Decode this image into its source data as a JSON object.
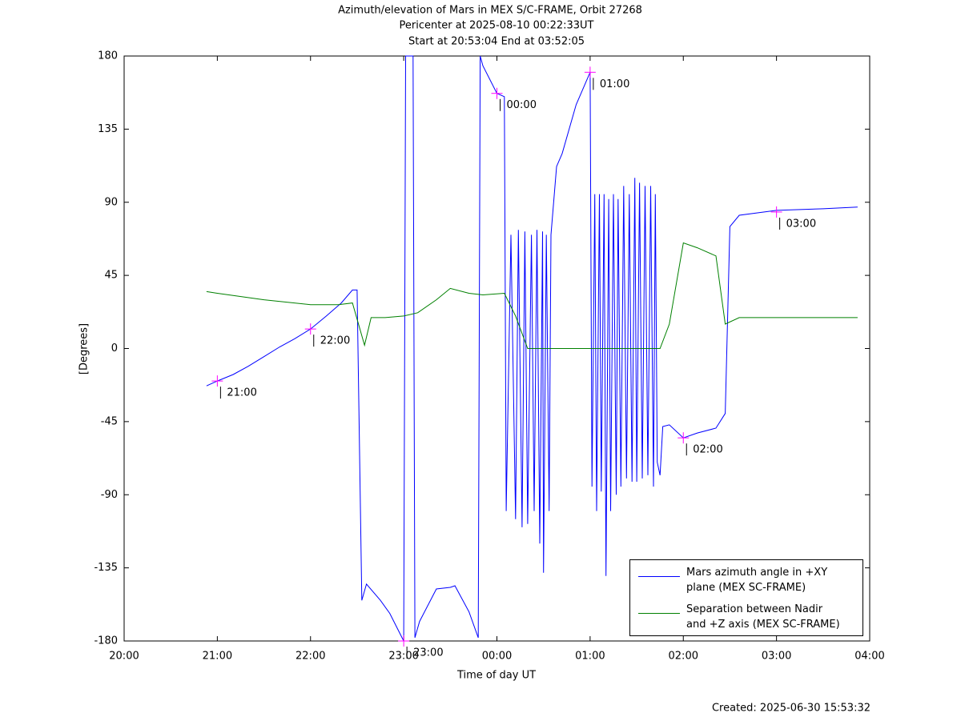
{
  "chart_data": {
    "type": "line",
    "title": "Azimuth/elevation of Mars in MEX S/C-FRAME,  Orbit 27268",
    "subtitle": "Pericenter at 2025-08-10 00:22:33UT",
    "subtitle2": "Start at 20:53:04 End at 03:52:05",
    "xlabel": "Time of day UT",
    "ylabel": "[Degrees]",
    "footer": "Created: 2025-06-30 15:53:32",
    "xlim": [
      20,
      28
    ],
    "ylim": [
      -180,
      180
    ],
    "xticks": [
      {
        "value": 20,
        "label": "20:00"
      },
      {
        "value": 21,
        "label": "21:00"
      },
      {
        "value": 22,
        "label": "22:00"
      },
      {
        "value": 23,
        "label": "23:00"
      },
      {
        "value": 24,
        "label": "00:00"
      },
      {
        "value": 25,
        "label": "01:00"
      },
      {
        "value": 26,
        "label": "02:00"
      },
      {
        "value": 27,
        "label": "03:00"
      },
      {
        "value": 28,
        "label": "04:00"
      }
    ],
    "yticks": [
      180,
      135,
      90,
      45,
      0,
      -45,
      -90,
      -135,
      -180
    ],
    "legend": "lower right",
    "series": [
      {
        "name": "Mars azimuth angle in +XY\nplane (MEX SC-FRAME)",
        "color": "#0000ff",
        "x": [
          20.884,
          21,
          21.17,
          21.33,
          21.5,
          21.67,
          21.83,
          22,
          22.17,
          22.33,
          22.45,
          22.5,
          22.55,
          22.6,
          22.75,
          22.85,
          23.0,
          23.02,
          23.1,
          23.12,
          23.17,
          23.35,
          23.5,
          23.55,
          23.7,
          23.8,
          23.82,
          23.85,
          24.0,
          24.08,
          24.1,
          24.15,
          24.2,
          24.23,
          24.27,
          24.3,
          24.33,
          24.37,
          24.4,
          24.43,
          24.46,
          24.49,
          24.5,
          24.53,
          24.56,
          24.58,
          24.64,
          24.7,
          24.85,
          25.0,
          25.02,
          25.05,
          25.07,
          25.1,
          25.12,
          25.15,
          25.17,
          25.2,
          25.22,
          25.25,
          25.28,
          25.3,
          25.33,
          25.36,
          25.39,
          25.42,
          25.45,
          25.48,
          25.5,
          25.53,
          25.56,
          25.59,
          25.62,
          25.65,
          25.68,
          25.7,
          25.72,
          25.75,
          25.78,
          25.85,
          26.0,
          26.15,
          26.35,
          26.45,
          26.5,
          26.6,
          27.0,
          27.5,
          27.87
        ],
        "values": [
          -23,
          -20,
          -16,
          -11,
          -5,
          1,
          6,
          12,
          20,
          28,
          36,
          36,
          -155,
          -145,
          -155,
          -163,
          -180,
          180,
          180,
          -178,
          -168,
          -148,
          -147,
          -146,
          -162,
          -178,
          180,
          174,
          157,
          155,
          -100,
          70,
          -105,
          73,
          -110,
          72,
          -108,
          70,
          -100,
          73,
          -120,
          72,
          -138,
          70,
          -100,
          70,
          112,
          120,
          150,
          170,
          -85,
          95,
          -100,
          95,
          -88,
          95,
          -140,
          92,
          -100,
          95,
          -90,
          92,
          -85,
          100,
          -80,
          95,
          -82,
          105,
          -82,
          102,
          -80,
          100,
          -78,
          100,
          -85,
          95,
          -70,
          -78,
          -48,
          -47,
          -55,
          -52,
          -49,
          -40,
          75,
          82,
          85,
          86,
          87
        ]
      },
      {
        "name": "Separation between Nadir\nand +Z axis (MEX SC-FRAME)",
        "color": "#008000",
        "x": [
          20.884,
          21,
          21.5,
          22,
          22.3,
          22.45,
          22.58,
          22.65,
          22.8,
          23.0,
          23.15,
          23.35,
          23.5,
          23.7,
          23.85,
          24.08,
          24.2,
          24.33,
          25.0,
          25.75,
          25.85,
          26.0,
          26.15,
          26.35,
          26.45,
          26.6,
          27.0,
          27.87
        ],
        "values": [
          35,
          34,
          30,
          27,
          27,
          28,
          2,
          19,
          19,
          20,
          22,
          30,
          37,
          34,
          33,
          34,
          20,
          0,
          0,
          0,
          15,
          65,
          62,
          57,
          15,
          19,
          19,
          19
        ]
      }
    ],
    "annotations": [
      {
        "text": "21:00",
        "x": 21,
        "y": -20
      },
      {
        "text": "22:00",
        "x": 22,
        "y": 12
      },
      {
        "text": "23:00",
        "x": 23,
        "y": -180
      },
      {
        "text": "00:00",
        "x": 24,
        "y": 157
      },
      {
        "text": "01:00",
        "x": 25,
        "y": 170
      },
      {
        "text": "02:00",
        "x": 26,
        "y": -55
      },
      {
        "text": "03:00",
        "x": 27,
        "y": 84
      }
    ]
  }
}
